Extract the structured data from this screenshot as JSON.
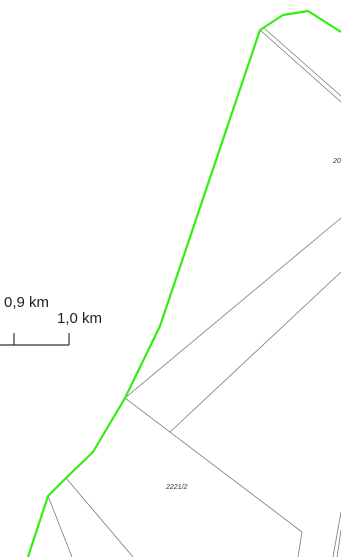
{
  "colors": {
    "boundary": "#33ee11",
    "parcel_line": "#7a7a7a",
    "scale_bar": "#333333",
    "background": "#ffffff"
  },
  "scale_bar": {
    "label_left": "0,9 km",
    "label_right": "1,0 km"
  },
  "parcels": [
    {
      "label": "2221/2"
    },
    {
      "label": "20"
    }
  ]
}
